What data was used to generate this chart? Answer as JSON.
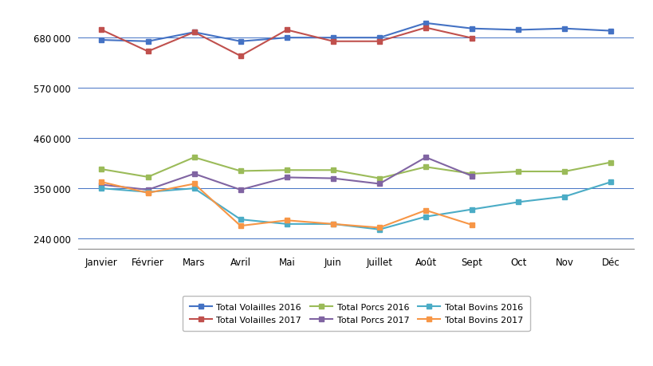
{
  "months": [
    "Janvier",
    "Février",
    "Mars",
    "Avril",
    "Mai",
    "Juin",
    "Juillet",
    "Août",
    "Sept",
    "Oct",
    "Nov",
    "Déc"
  ],
  "total_volailles_2016": [
    675000,
    672000,
    692000,
    672000,
    680000,
    680000,
    680000,
    712000,
    700000,
    697000,
    700000,
    695000
  ],
  "total_volailles_2017": [
    697000,
    650000,
    692000,
    640000,
    697000,
    672000,
    672000,
    702000,
    679000,
    null,
    null,
    null
  ],
  "total_porcs_2016": [
    392000,
    375000,
    418000,
    388000,
    390000,
    390000,
    372000,
    397000,
    382000,
    387000,
    387000,
    407000
  ],
  "total_porcs_2017": [
    358000,
    347000,
    382000,
    347000,
    374000,
    372000,
    360000,
    418000,
    377000,
    null,
    null,
    null
  ],
  "total_bovins_2016": [
    350000,
    342000,
    350000,
    282000,
    272000,
    272000,
    260000,
    288000,
    304000,
    320000,
    332000,
    364000
  ],
  "total_bovins_2017": [
    364000,
    340000,
    360000,
    268000,
    280000,
    272000,
    264000,
    302000,
    270000,
    null,
    null,
    null
  ],
  "colors": {
    "volailles_2016": "#4472C4",
    "volailles_2017": "#C0504D",
    "porcs_2016": "#9BBB59",
    "porcs_2017": "#8064A2",
    "bovins_2016": "#4BACC6",
    "bovins_2017": "#F79646"
  },
  "yticks": [
    240000,
    350000,
    460000,
    570000,
    680000
  ],
  "ylim": [
    218000,
    740000
  ],
  "legend_labels": [
    "Total Volailles 2016",
    "Total Volailles 2017",
    "Total Porcs 2016",
    "Total Porcs 2017",
    "Total Bovins 2016",
    "Total Bovins 2017"
  ]
}
